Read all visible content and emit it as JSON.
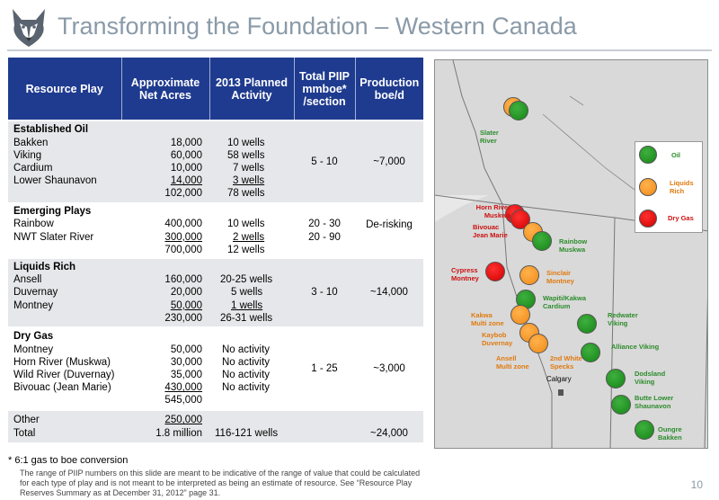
{
  "title": "Transforming the Foundation – Western Canada",
  "logo_icon": "husky-dog-head",
  "table": {
    "headers": [
      "Resource Play",
      "Approximate Net Acres",
      "2013 Planned Activity",
      "Total PIIP mmboe* /section",
      "Production boe/d"
    ],
    "groups": {
      "established": {
        "name": "Established Oil",
        "plays": [
          "Bakken",
          "Viking",
          "Cardium",
          "Lower Shaunavon"
        ],
        "acres": [
          "18,000",
          "60,000",
          "10,000",
          "14,000",
          "102,000"
        ],
        "activity": [
          "10 wells",
          "58 wells",
          "7 wells",
          "3 wells",
          "78 wells"
        ],
        "piip": "5 - 10",
        "production": "~7,000"
      },
      "emerging": {
        "name": "Emerging Plays",
        "plays": [
          "Rainbow",
          "NWT Slater River"
        ],
        "acres": [
          "400,000",
          "300,000",
          "700,000"
        ],
        "activity": [
          "10 wells",
          "2 wells",
          "12 wells"
        ],
        "piip": [
          "20 - 30",
          "20 - 90"
        ],
        "production": "De-risking"
      },
      "liquids": {
        "name": "Liquids Rich",
        "plays": [
          "Ansell",
          "Duvernay",
          "Montney"
        ],
        "acres": [
          "160,000",
          "20,000",
          "50,000",
          "230,000"
        ],
        "activity": [
          "20-25 wells",
          "5 wells",
          "1 wells",
          "26-31 wells"
        ],
        "piip": "3 - 10",
        "production": "~14,000"
      },
      "drygas": {
        "name": "Dry Gas",
        "plays": [
          "Montney",
          "Horn River (Muskwa)",
          "Wild River (Duvernay)",
          "Bivouac (Jean Marie)"
        ],
        "acres": [
          "50,000",
          "30,000",
          "35,000",
          "430,000",
          "545,000"
        ],
        "activity": [
          "No activity",
          "No activity",
          "No activity",
          "No activity"
        ],
        "piip": "1 - 25",
        "production": "~3,000"
      },
      "other": {
        "plays": [
          "Other",
          "Total"
        ],
        "acres": [
          "250,000",
          "1.8 million"
        ],
        "activity": "116-121 wells",
        "production": "~24,000"
      }
    }
  },
  "footnote": "* 6:1 gas to boe conversion",
  "disclaimer": "The range of PIIP numbers on this slide are meant to be indicative of the range of value that could be calculated for each type of play and is not meant to be interpreted as being an estimate of resource. See “Resource Play Reserves Summary as at December 31, 2012” page 31.",
  "page_number": "10",
  "map": {
    "legend": [
      "Oil",
      "Liquids Rich",
      "Dry Gas"
    ],
    "labels": {
      "slater": "Slater River",
      "hornriver": "Horn River Muskwa",
      "bivouac": "Bivouac Jean Marie",
      "rainbow": "Rainbow Muskwa",
      "cypress": "Cypress Montney",
      "sinclair": "Sinclair Montney",
      "wapiti": "Wapiti/Kakwa Cardium",
      "kakwa": "Kakwa Multi zone",
      "kaybob": "Kaybob Duvernay",
      "redwater": "Redwater Viking",
      "alliance": "Alliance Viking",
      "ansell": "Ansell Multi zone",
      "whitespecks": "2nd White Specks",
      "calgary": "Calgary",
      "dodsland": "Dodsland Viking",
      "butte": "Butte Lower Shaunavon",
      "oungre": "Oungre Bakken"
    },
    "colors": {
      "oil": "#1a8f1a",
      "liquids": "#f7941d",
      "drygas": "#e81010",
      "header_blue": "#1f3b8f"
    }
  }
}
